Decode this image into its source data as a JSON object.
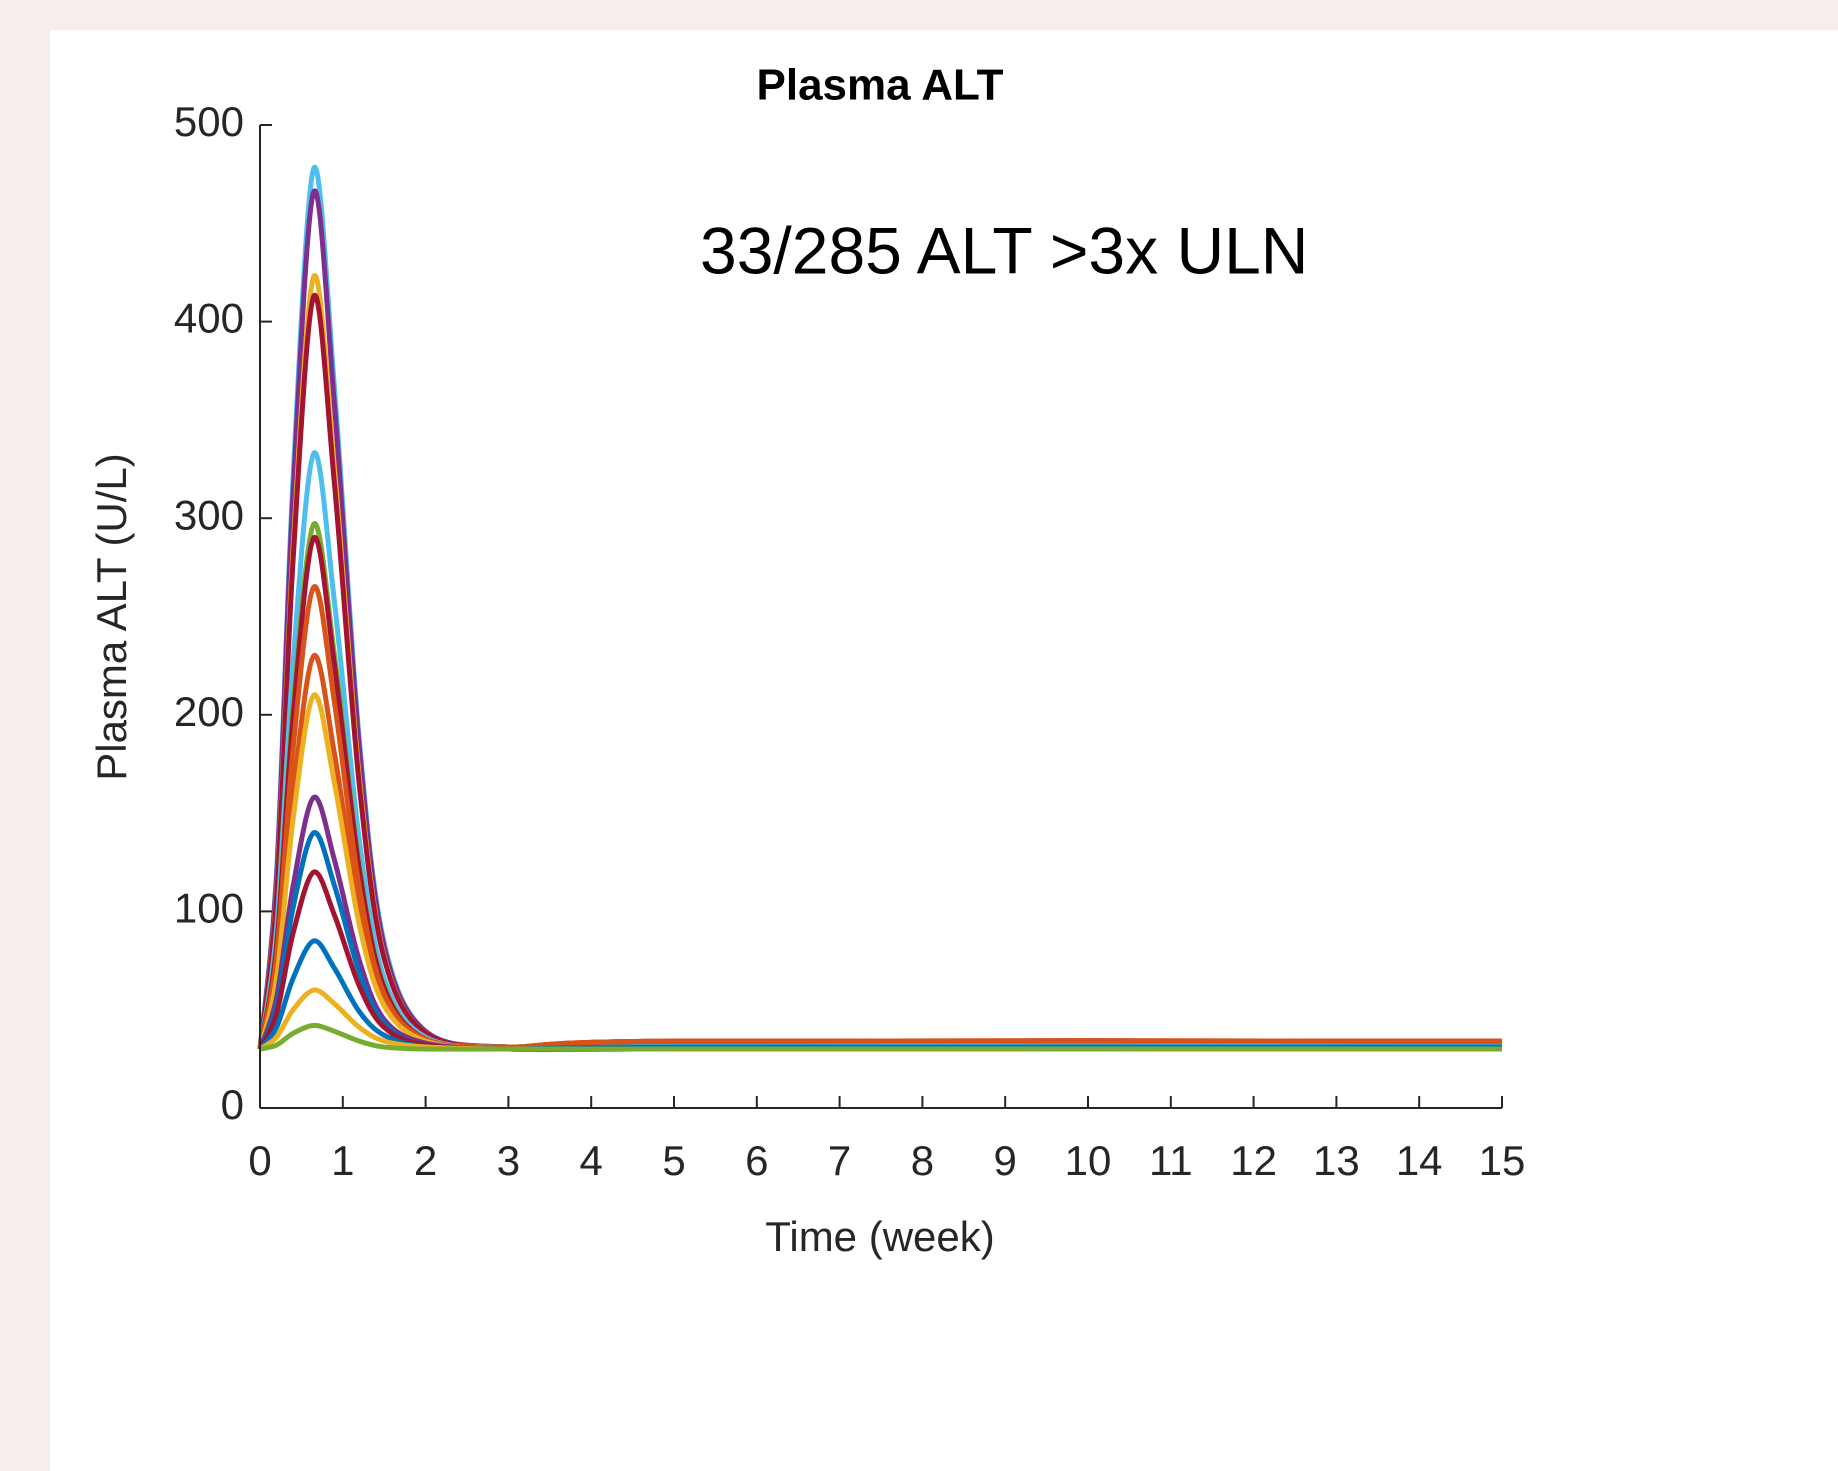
{
  "chart_data": {
    "type": "line",
    "title": "Plasma ALT",
    "annotation": "33/285 ALT >3x ULN",
    "xlabel": "Time (week)",
    "ylabel": "Plasma ALT (U/L)",
    "x": [
      0,
      0.2,
      0.4,
      0.65,
      0.9,
      1.2,
      1.5,
      2,
      3,
      5,
      15
    ],
    "xlim": [
      0,
      15
    ],
    "xticks": [
      0,
      1,
      2,
      3,
      4,
      5,
      6,
      7,
      8,
      9,
      10,
      11,
      12,
      13,
      14,
      15
    ],
    "ylim": [
      0,
      500
    ],
    "yticks": [
      0,
      100,
      200,
      300,
      400,
      500
    ],
    "grid": false,
    "series": [
      {
        "color": "#4DBEEE",
        "values": [
          30,
          120,
          321,
          478,
          366,
          187,
          84,
          39,
          31,
          33,
          33
        ]
      },
      {
        "color": "#7E2F8E",
        "values": [
          30,
          117,
          313,
          466,
          357,
          183,
          82,
          39,
          31,
          33,
          33
        ]
      },
      {
        "color": "#EDB120",
        "values": [
          30,
          109,
          285,
          423,
          325,
          168,
          77,
          38,
          31,
          33,
          33
        ]
      },
      {
        "color": "#A2142F",
        "values": [
          30,
          107,
          279,
          413,
          317,
          164,
          76,
          38,
          31,
          33,
          33
        ]
      },
      {
        "color": "#4DBEEE",
        "values": [
          30,
          91,
          227,
          333,
          257,
          136,
          66,
          36,
          31,
          32,
          32
        ]
      },
      {
        "color": "#77AC30",
        "values": [
          30,
          83,
          204,
          297,
          230,
          123,
          62,
          35,
          30,
          30,
          30
        ]
      },
      {
        "color": "#A2142F",
        "values": [
          30,
          82,
          199,
          290,
          225,
          121,
          61,
          35,
          31,
          34,
          34
        ]
      },
      {
        "color": "#D95319",
        "values": [
          30,
          77,
          183,
          265,
          206,
          112,
          58,
          35,
          31,
          34,
          34
        ]
      },
      {
        "color": "#D95319",
        "values": [
          30,
          70,
          160,
          230,
          180,
          100,
          54,
          34,
          31,
          34,
          34
        ]
      },
      {
        "color": "#EDB120",
        "values": [
          30,
          66,
          147,
          210,
          165,
          93,
          52,
          34,
          30,
          31,
          31
        ]
      },
      {
        "color": "#7E2F8E",
        "values": [
          30,
          56,
          113,
          158,
          126,
          75,
          45,
          33,
          30,
          30,
          30
        ]
      },
      {
        "color": "#0072BD",
        "values": [
          30,
          52,
          102,
          140,
          113,
          69,
          43,
          32,
          30,
          31,
          31
        ]
      },
      {
        "color": "#A2142F",
        "values": [
          30,
          48,
          89,
          120,
          98,
          62,
          41,
          32,
          30,
          30,
          30
        ]
      },
      {
        "color": "#0072BD",
        "values": [
          30,
          41,
          66,
          85,
          71,
          49,
          37,
          31,
          30,
          30,
          30
        ]
      },
      {
        "color": "#EDB120",
        "values": [
          30,
          36,
          50,
          60,
          53,
          41,
          34,
          31,
          30,
          30,
          30
        ]
      },
      {
        "color": "#77AC30",
        "values": [
          30,
          32,
          38,
          42,
          39,
          34,
          31,
          30,
          30,
          30,
          30
        ]
      }
    ]
  }
}
